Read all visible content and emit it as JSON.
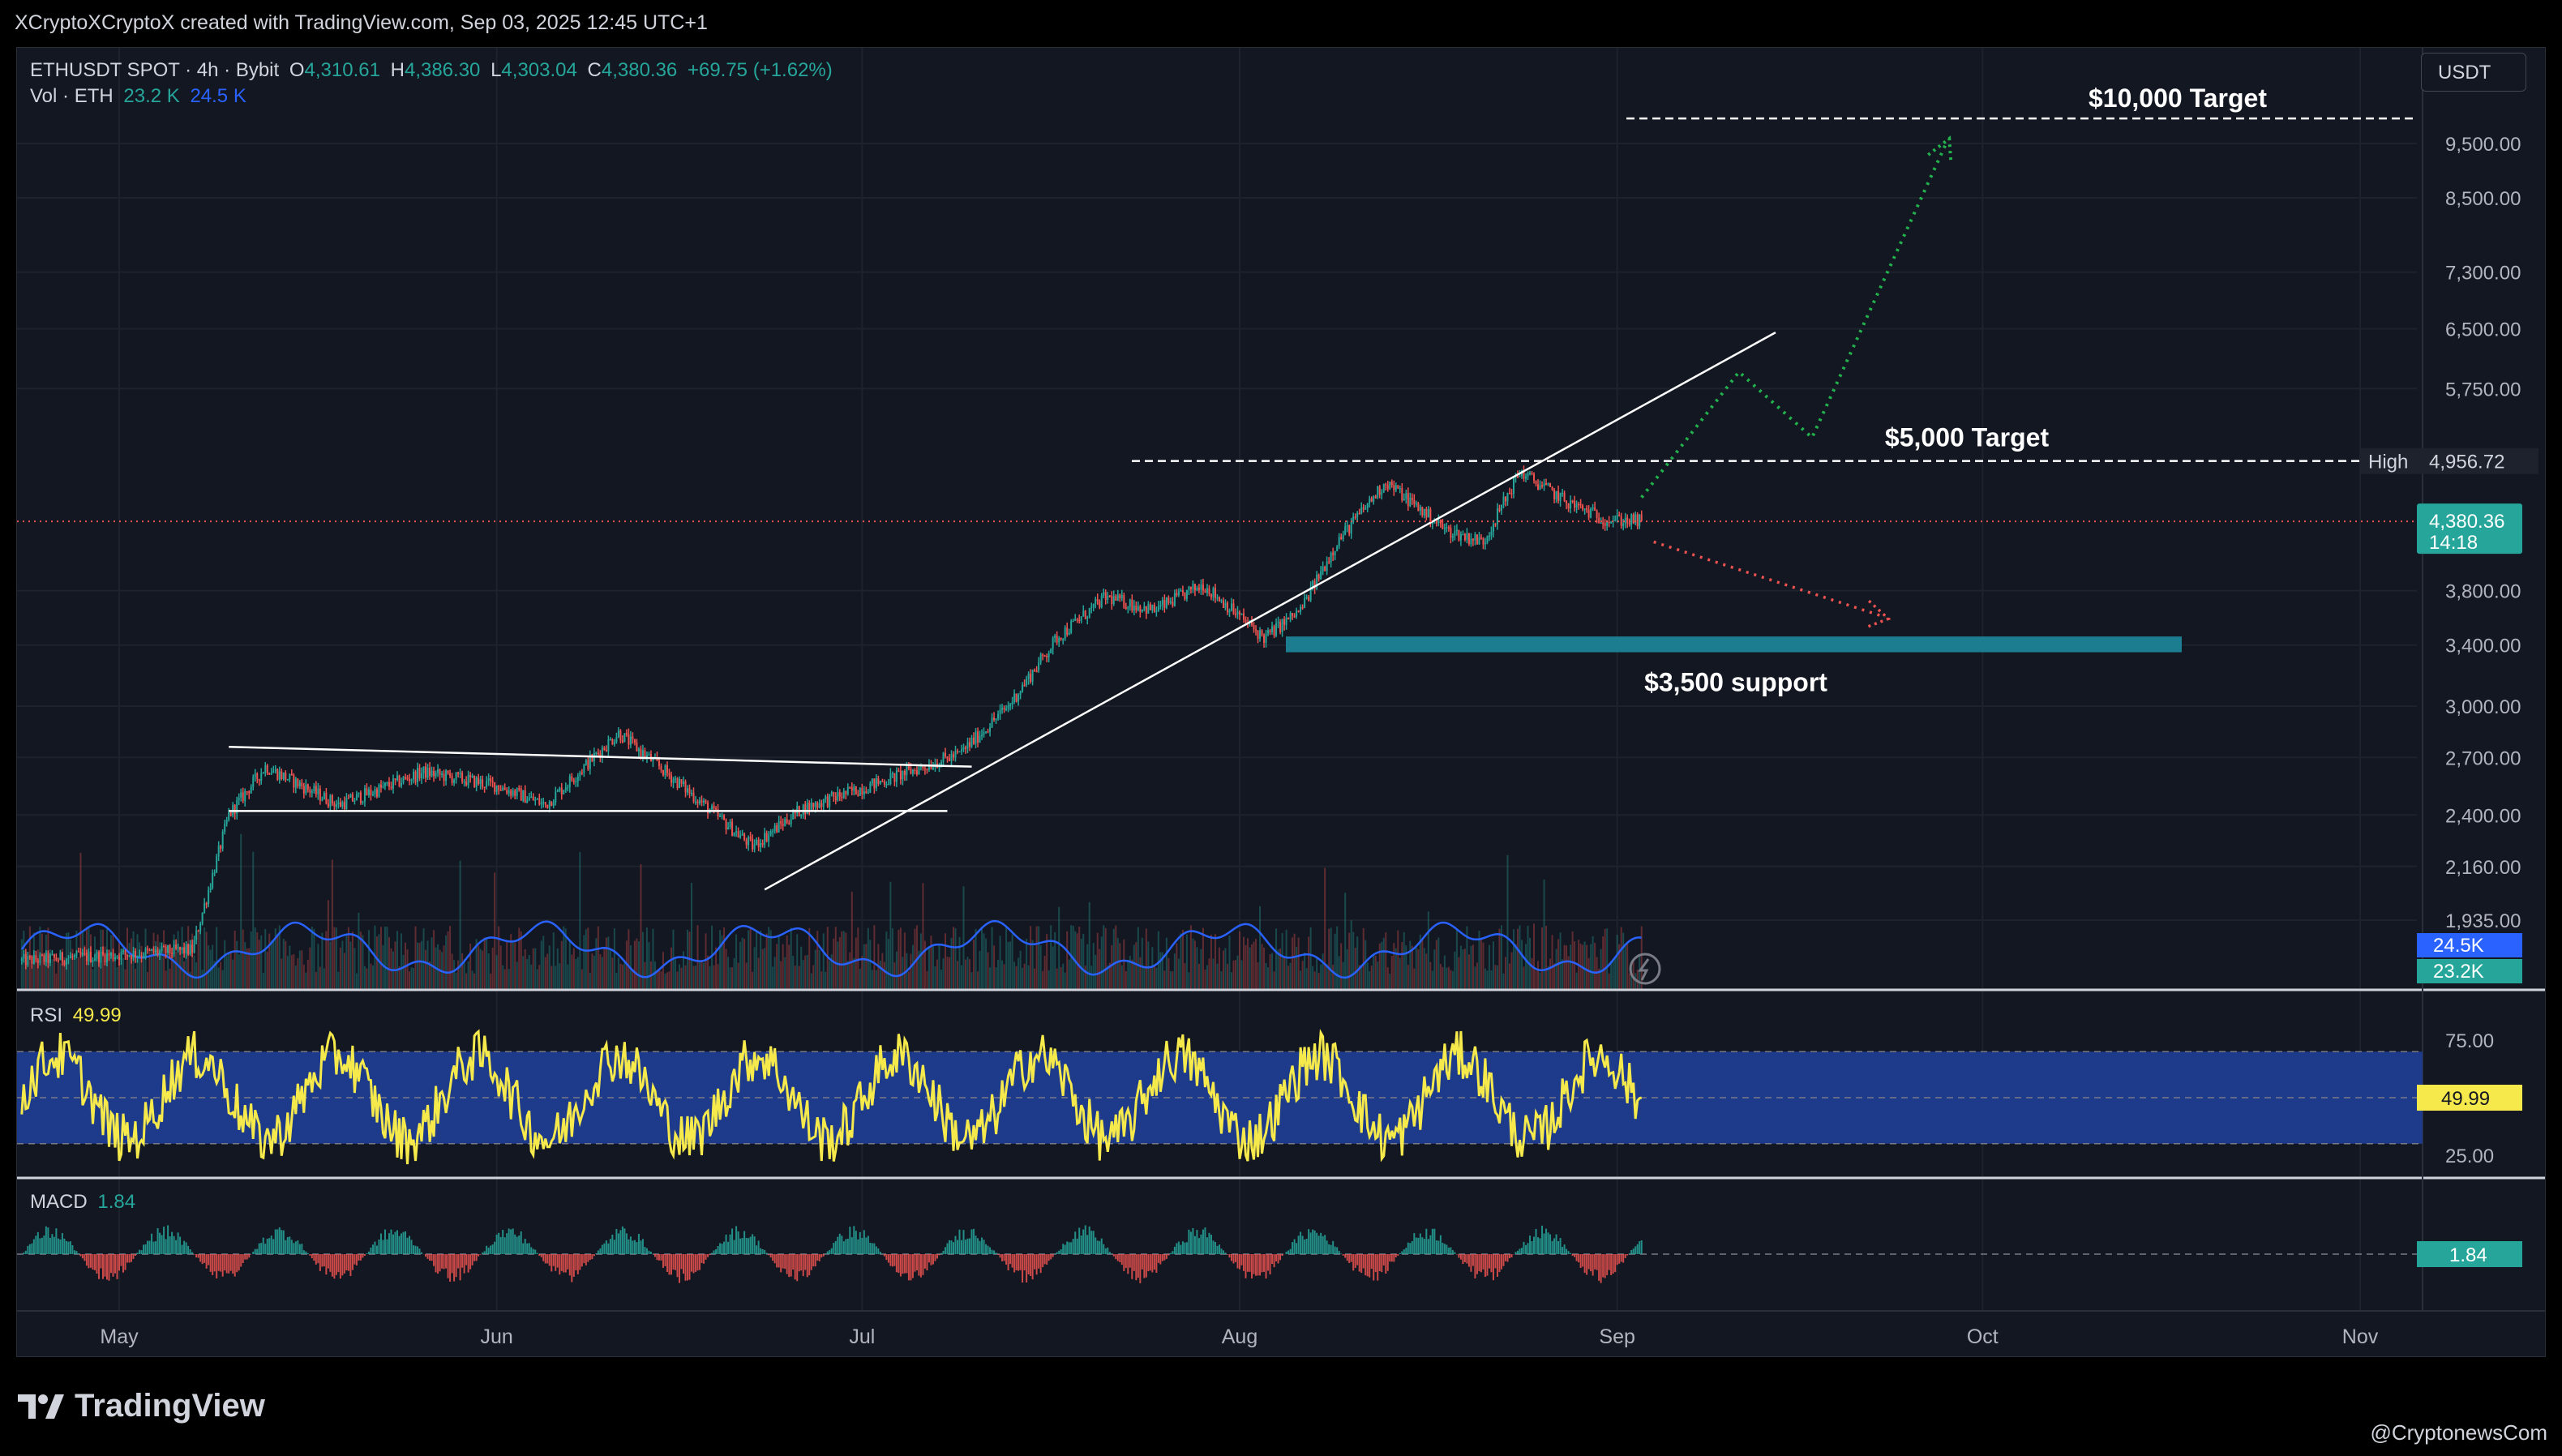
{
  "attribution": "XCryptoXCryptoX created with TradingView.com, Sep 03, 2025 12:45 UTC+1",
  "legend": {
    "symbol": "ETHUSDT SPOT · 4h · Bybit",
    "open_label": "O",
    "open": "4,310.61",
    "high_label": "H",
    "high": "4,386.30",
    "low_label": "L",
    "low": "4,303.04",
    "close_label": "C",
    "close": "4,380.36",
    "change": "+69.75 (+1.62%)",
    "vol_label": "Vol · ETH",
    "vol_1": "23.2 K",
    "vol_2": "24.5 K"
  },
  "unit": "USDT",
  "rsi": {
    "label": "RSI",
    "value": "49.99"
  },
  "macd": {
    "label": "MACD",
    "value": "1.84"
  },
  "colors": {
    "background": "#131722",
    "up": "#26a69a",
    "down": "#ef5350",
    "rsi": "#f5e94c",
    "rsi_band": "#1e3a8a",
    "volume_ma": "#2962ff",
    "support": "#1b7d8f",
    "bull_path": "#22b14c",
    "bear_path": "#ef5350"
  },
  "footer": {
    "logo": "TradingView",
    "credit": "@CryptonewsCom"
  },
  "chart_data": [
    {
      "type": "candlestick",
      "title": "",
      "x_ticks": [
        "May",
        "Jun",
        "Jul",
        "Aug",
        "Sep",
        "Oct",
        "Nov"
      ],
      "y_scale": "log",
      "y_ticks": [
        "9,500.00",
        "8,500.00",
        "7,300.00",
        "6,500.00",
        "5,750.00",
        "3,800.00",
        "3,400.00",
        "3,000.00",
        "2,700.00",
        "2,400.00",
        "2,160.00",
        "1,935.00"
      ],
      "ylim": [
        1800,
        11000
      ],
      "current_price": {
        "value": 4380.36,
        "label": "4,380.36",
        "countdown": "14:18"
      },
      "high_marker": {
        "label": "High",
        "value": 4956.72,
        "value_label": "4,956.72"
      },
      "price_path": [
        {
          "date": "2025-04-23",
          "price": 1780
        },
        {
          "date": "2025-05-07",
          "price": 1820
        },
        {
          "date": "2025-05-10",
          "price": 2400
        },
        {
          "date": "2025-05-13",
          "price": 2650
        },
        {
          "date": "2025-05-19",
          "price": 2450
        },
        {
          "date": "2025-05-26",
          "price": 2620
        },
        {
          "date": "2025-06-01",
          "price": 2550
        },
        {
          "date": "2025-06-05",
          "price": 2450
        },
        {
          "date": "2025-06-11",
          "price": 2840
        },
        {
          "date": "2025-06-16",
          "price": 2560
        },
        {
          "date": "2025-06-22",
          "price": 2250
        },
        {
          "date": "2025-06-26",
          "price": 2430
        },
        {
          "date": "2025-07-03",
          "price": 2580
        },
        {
          "date": "2025-07-09",
          "price": 2720
        },
        {
          "date": "2025-07-13",
          "price": 3000
        },
        {
          "date": "2025-07-17",
          "price": 3450
        },
        {
          "date": "2025-07-21",
          "price": 3750
        },
        {
          "date": "2025-07-25",
          "price": 3650
        },
        {
          "date": "2025-07-29",
          "price": 3850
        },
        {
          "date": "2025-08-03",
          "price": 3450
        },
        {
          "date": "2025-08-06",
          "price": 3650
        },
        {
          "date": "2025-08-09",
          "price": 4200
        },
        {
          "date": "2025-08-13",
          "price": 4750
        },
        {
          "date": "2025-08-18",
          "price": 4300
        },
        {
          "date": "2025-08-21",
          "price": 4200
        },
        {
          "date": "2025-08-24",
          "price": 4850
        },
        {
          "date": "2025-08-28",
          "price": 4550
        },
        {
          "date": "2025-08-31",
          "price": 4400
        },
        {
          "date": "2025-09-03",
          "price": 4380
        }
      ],
      "annotations": [
        {
          "text": "$10,000 Target",
          "price": 10000
        },
        {
          "text": "$5,000 Target",
          "price": 4956.72
        },
        {
          "text": "$3,500 support",
          "price_range": [
            3350,
            3460
          ]
        }
      ],
      "projection_bullish": [
        {
          "date": "2025-09-03",
          "price": 4600
        },
        {
          "date": "2025-09-11",
          "price": 5950
        },
        {
          "date": "2025-09-17",
          "price": 5200
        },
        {
          "date": "2025-09-28",
          "price": 9500
        }
      ],
      "projection_bearish": [
        {
          "date": "2025-09-04",
          "price": 4200
        },
        {
          "date": "2025-09-23",
          "price": 3600
        }
      ],
      "trendline": [
        {
          "date": "2025-06-23",
          "price": 2060
        },
        {
          "date": "2025-09-14",
          "price": 6450
        }
      ],
      "channel_top": [
        {
          "date": "2025-05-10",
          "price": 2760
        },
        {
          "date": "2025-07-10",
          "price": 2650
        }
      ],
      "channel_bottom": [
        {
          "date": "2025-05-10",
          "price": 2420
        },
        {
          "date": "2025-07-08",
          "price": 2420
        }
      ]
    },
    {
      "type": "line",
      "name": "RSI",
      "y_ticks": [
        "75.00",
        "25.00"
      ],
      "ylim": [
        15,
        85
      ],
      "band": [
        30,
        70
      ],
      "current": 49.99
    },
    {
      "type": "histogram",
      "name": "MACD",
      "current": 1.84
    }
  ]
}
